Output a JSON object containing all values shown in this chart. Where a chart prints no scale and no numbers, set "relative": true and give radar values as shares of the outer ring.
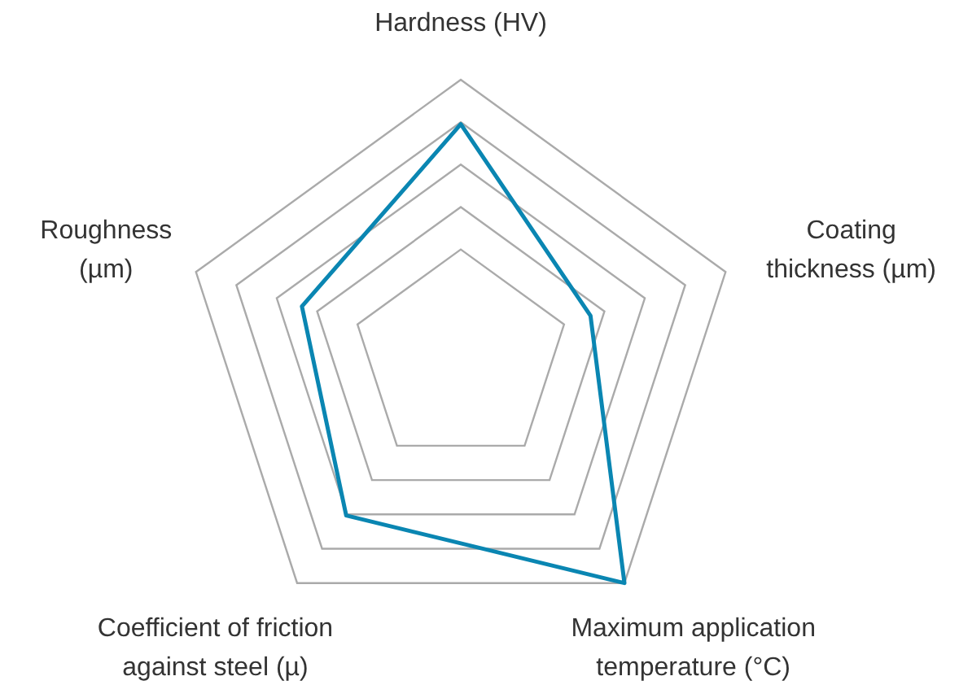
{
  "chart_data": {
    "type": "radar",
    "relative": true,
    "grid": true,
    "marker": "none",
    "categories": [
      "Hardness (HV)",
      "Coating thickness (µm)",
      "Maximum application temperature (°C)",
      "Coefficient of friction against steel (µ)",
      "Roughness (µm)"
    ],
    "series": [
      {
        "color": "#0a86b2",
        "values": [
          0.84,
          0.49,
          1,
          0.7,
          0.6
        ]
      }
    ]
  }
}
